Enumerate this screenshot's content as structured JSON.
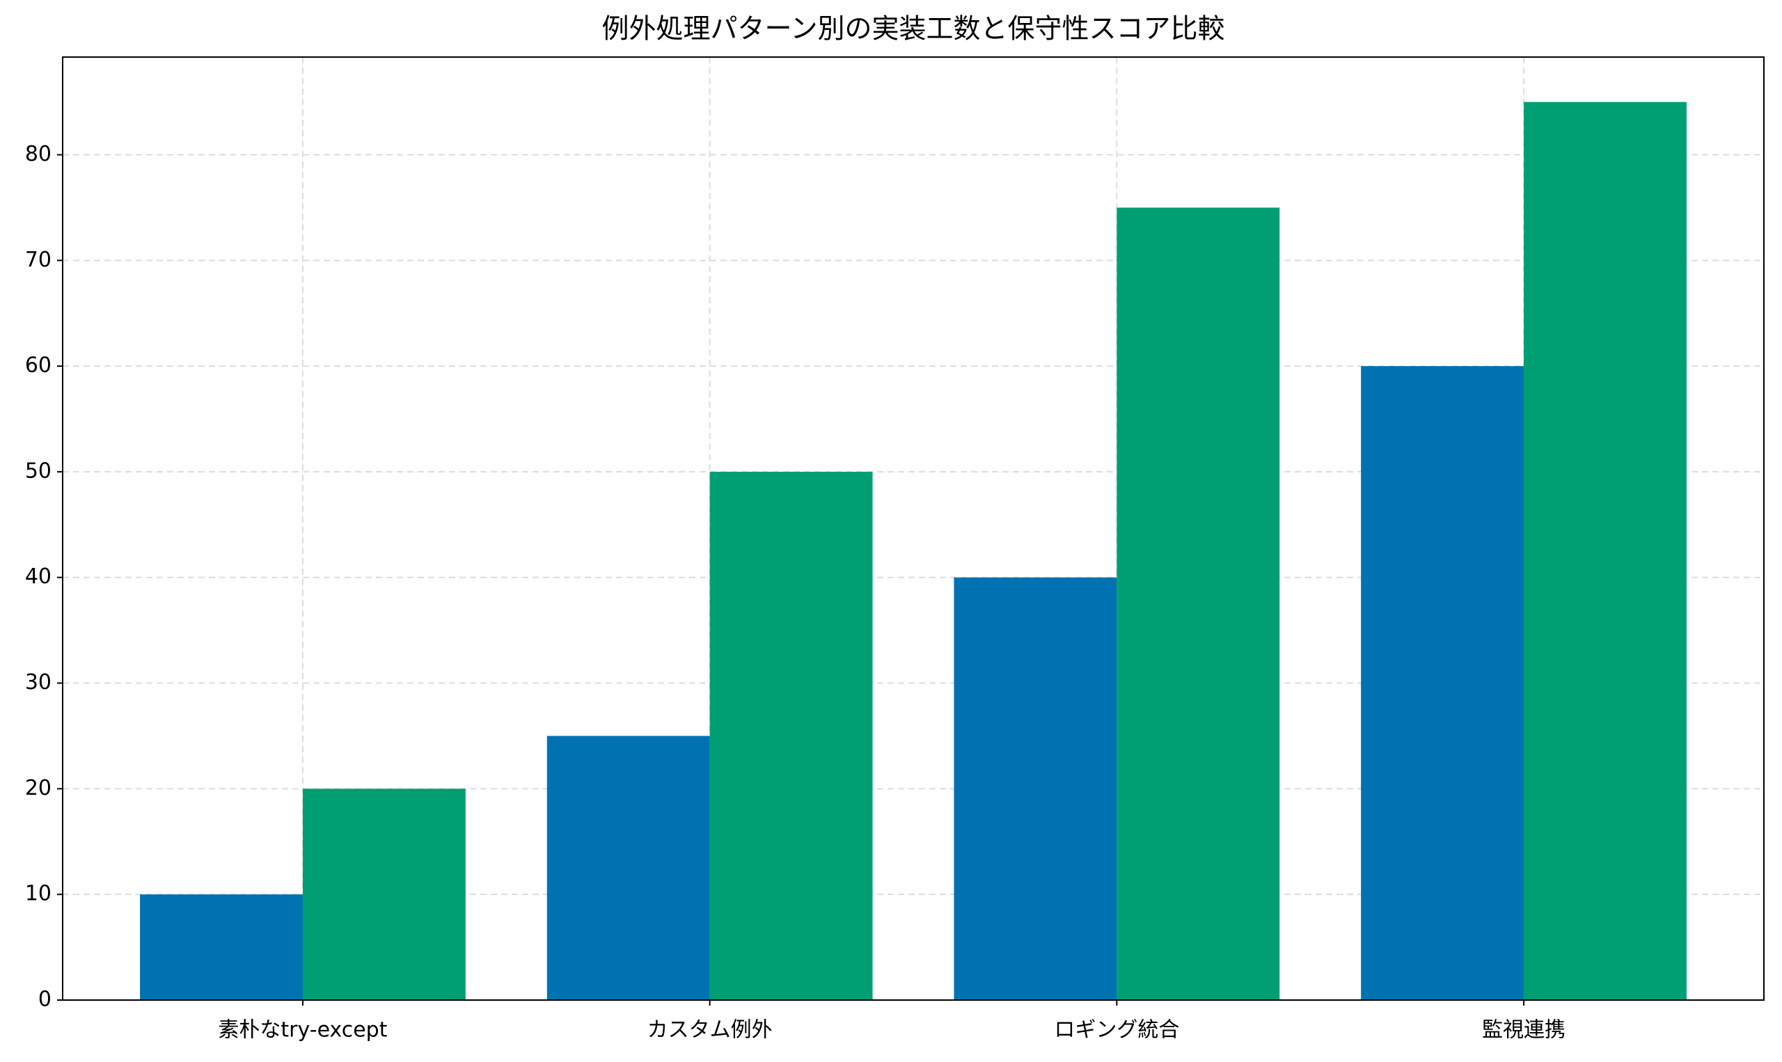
{
  "chart_data": {
    "type": "bar",
    "title": "例外処理パターン別の実装工数と保守性スコア比較",
    "categories": [
      "素朴なtry-except",
      "カスタム例外",
      "ロギング統合",
      "監視連携"
    ],
    "series": [
      {
        "color": "#0072b2",
        "values": [
          10,
          25,
          40,
          60
        ]
      },
      {
        "color": "#009e73",
        "values": [
          20,
          50,
          75,
          85
        ]
      }
    ],
    "ylim": [
      0,
      89.25
    ],
    "yticks": [
      0,
      10,
      20,
      30,
      40,
      50,
      60,
      70,
      80
    ],
    "grid": true
  }
}
